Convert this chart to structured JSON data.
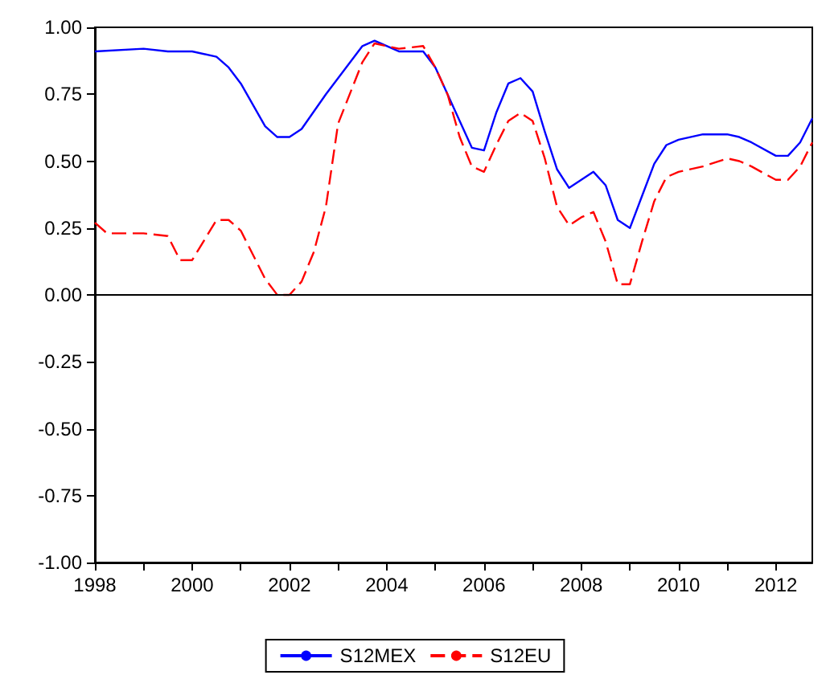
{
  "chart_data": {
    "type": "line",
    "marker": "none",
    "grid": false,
    "legend": "bottom",
    "xlim": [
      1998,
      2012.75
    ],
    "xticks": [
      {
        "value": 1998,
        "label": "1998"
      },
      {
        "value": 1999,
        "label": null
      },
      {
        "value": 2000,
        "label": "2000"
      },
      {
        "value": 2001,
        "label": null
      },
      {
        "value": 2002,
        "label": "2002"
      },
      {
        "value": 2003,
        "label": null
      },
      {
        "value": 2004,
        "label": "2004"
      },
      {
        "value": 2005,
        "label": null
      },
      {
        "value": 2006,
        "label": "2006"
      },
      {
        "value": 2007,
        "label": null
      },
      {
        "value": 2008,
        "label": "2008"
      },
      {
        "value": 2009,
        "label": null
      },
      {
        "value": 2010,
        "label": "2010"
      },
      {
        "value": 2011,
        "label": null
      },
      {
        "value": 2012,
        "label": "2012"
      }
    ],
    "ylim": [
      -1,
      1
    ],
    "yticks": [
      {
        "value": -1,
        "label": "-1.00"
      },
      {
        "value": -0.75,
        "label": "-0.75"
      },
      {
        "value": -0.5,
        "label": "-0.50"
      },
      {
        "value": -0.25,
        "label": "-0.25"
      },
      {
        "value": 0,
        "label": "0.00"
      },
      {
        "value": 0.25,
        "label": "0.25"
      },
      {
        "value": 0.5,
        "label": "0.50"
      },
      {
        "value": 0.75,
        "label": "0.75"
      },
      {
        "value": 1,
        "label": "1.00"
      }
    ],
    "ref_lines": [
      {
        "axis": "y",
        "value": 0,
        "color": "#000000"
      }
    ],
    "series": [
      {
        "name": "S12MEX",
        "color": "#0000ff",
        "line_style": "solid",
        "x": [
          1998,
          1999,
          1999.5,
          2000,
          2000.5,
          2000.75,
          2001,
          2001.5,
          2001.75,
          2002,
          2002.25,
          2002.75,
          2003.5,
          2003.75,
          2004.25,
          2004.75,
          2005,
          2005.75,
          2006,
          2006.25,
          2006.5,
          2006.75,
          2007,
          2007.25,
          2007.5,
          2007.75,
          2008,
          2008.25,
          2008.5,
          2008.75,
          2009,
          2009.25,
          2009.5,
          2009.75,
          2010,
          2010.5,
          2011,
          2011.25,
          2011.5,
          2012,
          2012.25,
          2012.5,
          2012.75
        ],
        "values": [
          0.91,
          0.92,
          0.91,
          0.91,
          0.89,
          0.85,
          0.79,
          0.63,
          0.59,
          0.59,
          0.62,
          0.75,
          0.93,
          0.95,
          0.91,
          0.91,
          0.85,
          0.55,
          0.54,
          0.68,
          0.79,
          0.81,
          0.76,
          0.61,
          0.47,
          0.4,
          0.43,
          0.46,
          0.41,
          0.28,
          0.25,
          0.37,
          0.49,
          0.56,
          0.58,
          0.6,
          0.6,
          0.59,
          0.57,
          0.52,
          0.52,
          0.57,
          0.66
        ]
      },
      {
        "name": "S12EU",
        "color": "#ff0000",
        "line_style": "dashed",
        "x": [
          1998,
          1998.25,
          1999,
          1999.5,
          1999.75,
          2000,
          2000.5,
          2000.75,
          2001,
          2001.5,
          2001.75,
          2002,
          2002.25,
          2002.5,
          2002.75,
          2003,
          2003.5,
          2003.75,
          2004,
          2004.25,
          2004.75,
          2005,
          2005.25,
          2005.5,
          2005.75,
          2006,
          2006.25,
          2006.5,
          2006.75,
          2007,
          2007.25,
          2007.5,
          2007.75,
          2008,
          2008.25,
          2008.5,
          2008.75,
          2009,
          2009.25,
          2009.5,
          2009.75,
          2010,
          2010.5,
          2011,
          2011.25,
          2011.5,
          2012,
          2012.25,
          2012.5,
          2012.75
        ],
        "values": [
          0.27,
          0.23,
          0.23,
          0.22,
          0.13,
          0.13,
          0.28,
          0.28,
          0.24,
          0.06,
          0.0,
          0.0,
          0.05,
          0.16,
          0.33,
          0.64,
          0.87,
          0.94,
          0.93,
          0.92,
          0.93,
          0.85,
          0.75,
          0.59,
          0.48,
          0.46,
          0.56,
          0.65,
          0.68,
          0.65,
          0.51,
          0.33,
          0.26,
          0.29,
          0.31,
          0.2,
          0.04,
          0.04,
          0.2,
          0.35,
          0.44,
          0.46,
          0.48,
          0.51,
          0.5,
          0.48,
          0.43,
          0.43,
          0.48,
          0.57
        ]
      }
    ]
  }
}
